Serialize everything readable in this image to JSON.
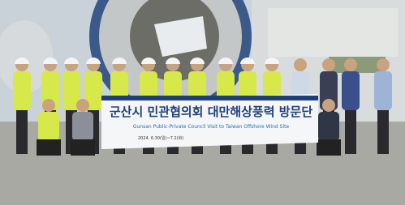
{
  "banner": {
    "title": "군산시 민관협의회 대만해상풍력 방문단",
    "subtitle": "Gunsan Public-Private Council Visit to Taiwan Offshore Wind Site",
    "date": "2024. 6.30(일)~7.2(화)"
  }
}
